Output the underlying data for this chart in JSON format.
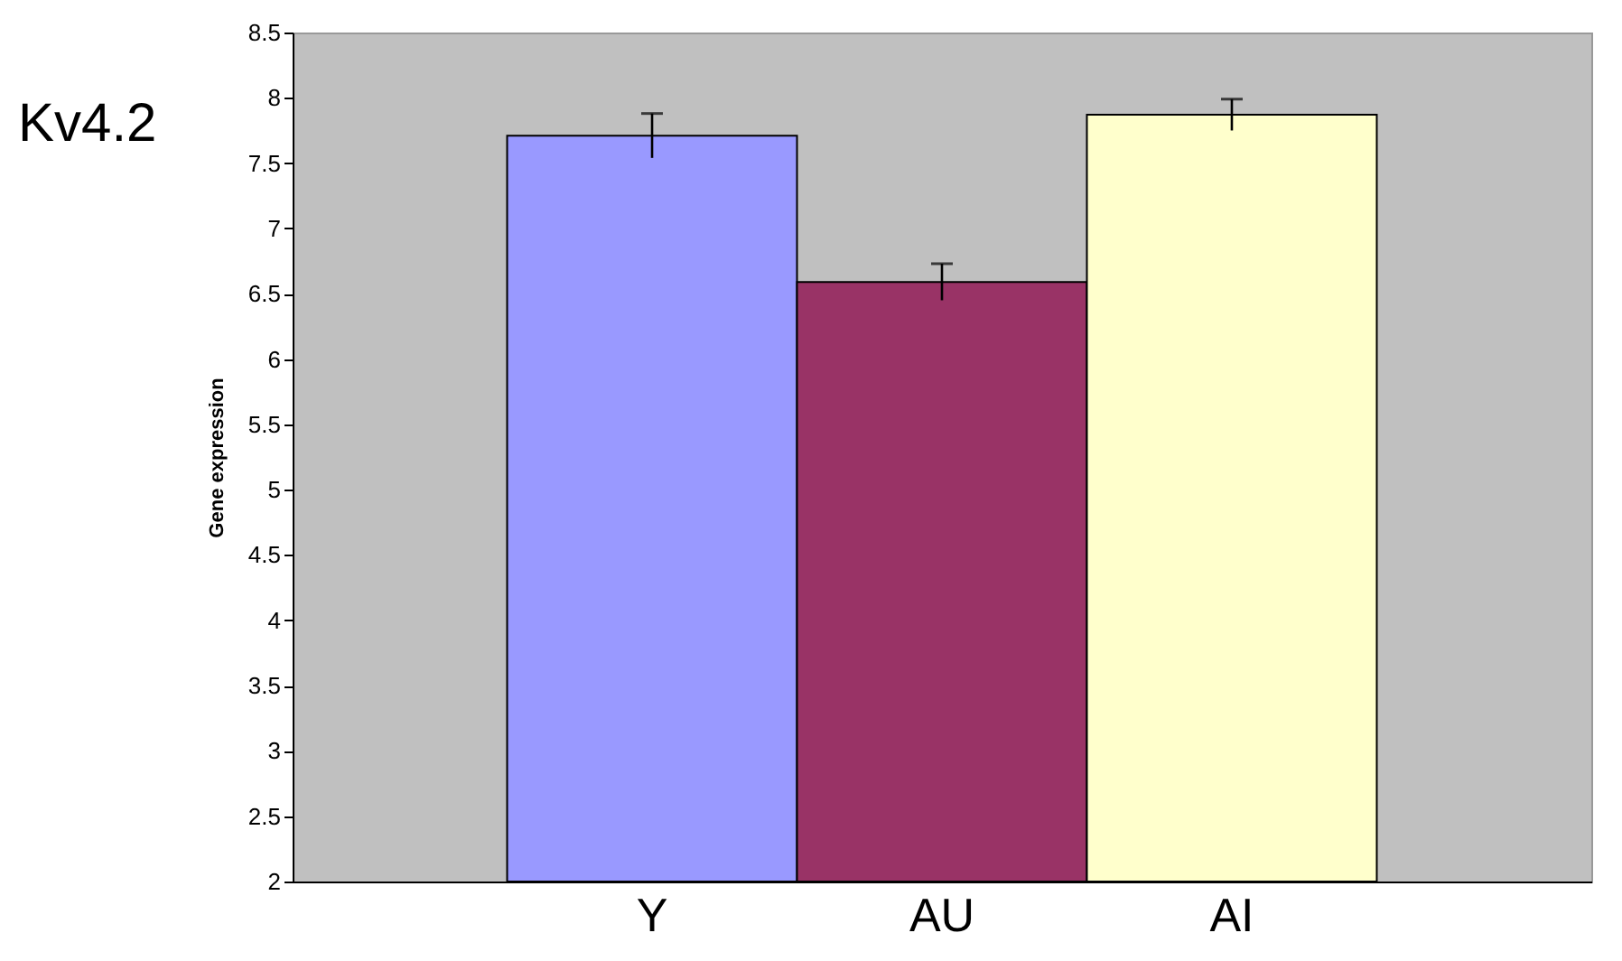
{
  "chart_data": {
    "type": "bar",
    "title": "Kv4.2",
    "ylabel": "Gene expression",
    "categories": [
      "Y",
      "AU",
      "AI"
    ],
    "values": [
      7.71,
      6.59,
      7.87
    ],
    "errors": [
      0.17,
      0.14,
      0.12
    ],
    "colors": [
      "#9999ff",
      "#993366",
      "#ffffcc"
    ],
    "ylim": [
      2,
      8.5
    ],
    "yticks": [
      2,
      2.5,
      3,
      3.5,
      4,
      4.5,
      5,
      5.5,
      6,
      6.5,
      7,
      7.5,
      8,
      8.5
    ],
    "grid": false,
    "legend": false
  }
}
